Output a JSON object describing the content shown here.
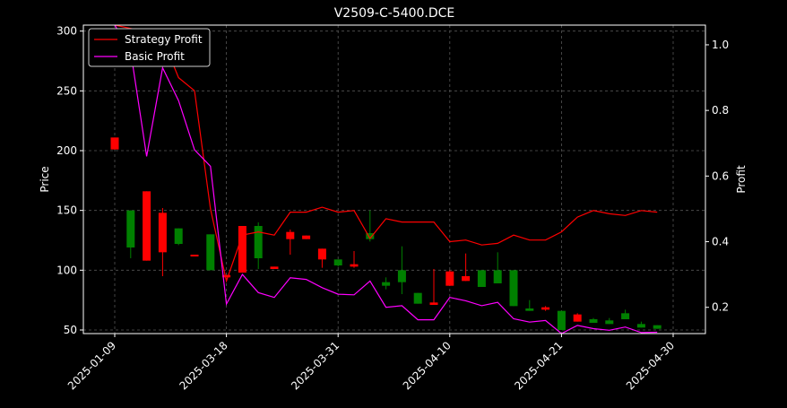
{
  "chart_data": {
    "type": "candlestick+line",
    "title": "V2509-C-5400.DCE",
    "ylabel_left": "Price",
    "ylabel_right": "Profit",
    "ylim_left": [
      47,
      305
    ],
    "ylim_right": [
      0.12,
      1.06
    ],
    "yticks_left": [
      50,
      100,
      150,
      200,
      250,
      300
    ],
    "yticks_right": [
      "0.2",
      "0.4",
      "0.6",
      "0.8",
      "1.0"
    ],
    "yticks_right_values": [
      0.2,
      0.4,
      0.6,
      0.8,
      1.0
    ],
    "xtick_labels": [
      "2025-01-09",
      "2025-03-18",
      "2025-03-31",
      "2025-04-10",
      "2025-04-21",
      "2025-04-30"
    ],
    "xtick_index": [
      0,
      7,
      14,
      21,
      28,
      35
    ],
    "grid": true,
    "legend_position": "top-left",
    "colors": {
      "background": "#000000",
      "up": "#ff0000",
      "down": "#008000",
      "strategy": "#ff0000",
      "basic": "#ff00ff",
      "grid": "#555555",
      "axes": "#ffffff"
    },
    "candles": [
      {
        "o": 201,
        "h": 211,
        "l": 201,
        "c": 211
      },
      {
        "o": 150,
        "h": 150,
        "l": 110,
        "c": 119
      },
      {
        "o": 108,
        "h": 166,
        "l": 108,
        "c": 166
      },
      {
        "o": 115,
        "h": 152,
        "l": 95,
        "c": 148
      },
      {
        "o": 135,
        "h": 135,
        "l": 121,
        "c": 122
      },
      {
        "o": 112,
        "h": 112,
        "l": 112,
        "c": 113
      },
      {
        "o": 130,
        "h": 130,
        "l": 100,
        "c": 100
      },
      {
        "o": 94,
        "h": 96,
        "l": 94,
        "c": 96
      },
      {
        "o": 98,
        "h": 137,
        "l": 98,
        "c": 137
      },
      {
        "o": 137,
        "h": 140,
        "l": 101,
        "c": 110
      },
      {
        "o": 101,
        "h": 103,
        "l": 101,
        "c": 103
      },
      {
        "o": 126,
        "h": 134,
        "l": 113,
        "c": 132
      },
      {
        "o": 126,
        "h": 129,
        "l": 126,
        "c": 129
      },
      {
        "o": 109,
        "h": 118,
        "l": 102,
        "c": 118
      },
      {
        "o": 109,
        "h": 109,
        "l": 103,
        "c": 104
      },
      {
        "o": 103,
        "h": 116,
        "l": 102,
        "c": 105
      },
      {
        "o": 131,
        "h": 150,
        "l": 124,
        "c": 126
      },
      {
        "o": 90,
        "h": 94,
        "l": 84,
        "c": 87
      },
      {
        "o": 100,
        "h": 120,
        "l": 80,
        "c": 90
      },
      {
        "o": 81,
        "h": 81,
        "l": 72,
        "c": 72
      },
      {
        "o": 71,
        "h": 101,
        "l": 71,
        "c": 73
      },
      {
        "o": 87,
        "h": 100,
        "l": 87,
        "c": 99
      },
      {
        "o": 91,
        "h": 114,
        "l": 91,
        "c": 95
      },
      {
        "o": 100,
        "h": 100,
        "l": 86,
        "c": 86
      },
      {
        "o": 100,
        "h": 115,
        "l": 89,
        "c": 89
      },
      {
        "o": 100,
        "h": 100,
        "l": 70,
        "c": 70
      },
      {
        "o": 68,
        "h": 75,
        "l": 66,
        "c": 66
      },
      {
        "o": 67,
        "h": 70,
        "l": 66,
        "c": 69
      },
      {
        "o": 66,
        "h": 66,
        "l": 50,
        "c": 50
      },
      {
        "o": 57,
        "h": 64,
        "l": 57,
        "c": 63
      },
      {
        "o": 59,
        "h": 60,
        "l": 56,
        "c": 56
      },
      {
        "o": 58,
        "h": 60,
        "l": 55,
        "c": 55
      },
      {
        "o": 64,
        "h": 67,
        "l": 59,
        "c": 59
      },
      {
        "o": 55,
        "h": 57,
        "l": 52,
        "c": 52
      },
      {
        "o": 54,
        "h": 54,
        "l": 51,
        "c": 51
      }
    ],
    "series": [
      {
        "name": "Strategy Profit",
        "values": [
          1.06,
          1.05,
          1.04,
          1.02,
          0.9,
          0.86,
          0.5,
          0.28,
          0.42,
          0.43,
          0.42,
          0.49,
          0.49,
          0.505,
          0.49,
          0.495,
          0.41,
          0.47,
          0.46,
          0.46,
          0.46,
          0.4,
          0.405,
          0.39,
          0.395,
          0.42,
          0.405,
          0.405,
          0.43,
          0.475,
          0.495,
          0.485,
          0.48,
          0.495,
          0.49
        ]
      },
      {
        "name": "Basic Profit",
        "values": [
          1.06,
          0.98,
          0.66,
          0.93,
          0.83,
          0.68,
          0.63,
          0.21,
          0.3,
          0.245,
          0.23,
          0.29,
          0.285,
          0.26,
          0.24,
          0.238,
          0.28,
          0.2,
          0.205,
          0.162,
          0.162,
          0.23,
          0.22,
          0.205,
          0.215,
          0.165,
          0.155,
          0.16,
          0.12,
          0.145,
          0.135,
          0.13,
          0.14,
          0.123,
          0.124
        ]
      }
    ]
  }
}
